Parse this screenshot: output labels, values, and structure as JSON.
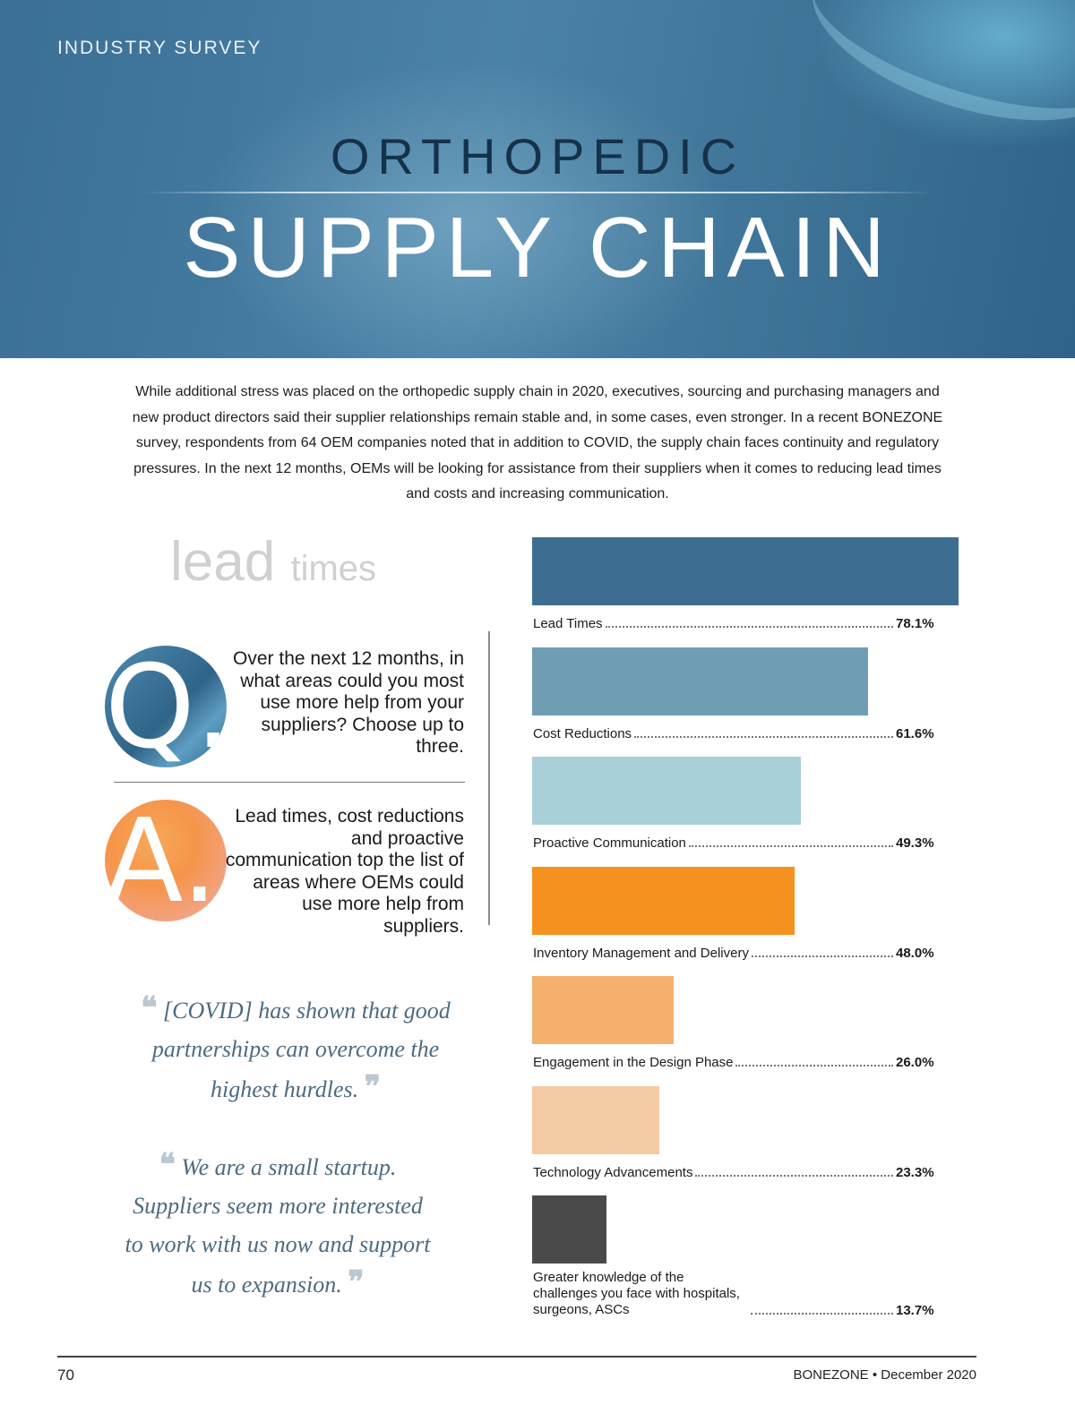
{
  "header": {
    "kicker": "INDUSTRY SURVEY",
    "title_top": "ORTHOPEDIC",
    "title_main": "SUPPLY CHAIN"
  },
  "intro": "While additional stress was placed on the orthopedic supply chain in 2020, executives, sourcing and purchasing managers and new product directors said their supplier relationships remain stable and, in some cases, even stronger. In a recent BONEZONE survey, respondents from 64 OEM companies noted that in addition to COVID, the supply chain faces continuity and regulatory pressures. In the next 12 months, OEMs will be looking for assistance from their suppliers when it comes to reducing lead times and costs and increasing communication.",
  "section": {
    "title_big": "lead",
    "title_small": "times"
  },
  "qa": {
    "q_letter": "Q.",
    "question": "Over the next 12 months, in what areas could you most use more help from your suppliers? Choose up to three.",
    "a_letter": "A.",
    "answer": "Lead times, cost reductions and proactive communication top the list of areas where OEMs could use more help from suppliers."
  },
  "quotes": [
    {
      "open": "❝",
      "text": "[COVID] has shown that good partnerships can overcome the highest hurdles.",
      "close": "❞"
    },
    {
      "open": "❝",
      "text": "We are a small startup. Suppliers seem more interested to work with us now and support us to expansion.",
      "close": "❞"
    }
  ],
  "chart_data": {
    "type": "bar",
    "orientation": "horizontal",
    "categories": [
      "Lead Times",
      "Cost Reductions",
      "Proactive Communication",
      "Inventory Management and Delivery",
      "Engagement in the Design Phase",
      "Technology Advancements",
      "Greater knowledge of the challenges you face with hospitals, surgeons, ASCs"
    ],
    "values": [
      78.1,
      61.6,
      49.3,
      48.0,
      26.0,
      23.3,
      13.7
    ],
    "value_labels": [
      "78.1%",
      "61.6%",
      "49.3%",
      "48.0%",
      "26.0%",
      "23.3%",
      "13.7%"
    ],
    "colors": [
      "#3d6e92",
      "#6f9db4",
      "#a9cfd8",
      "#f5911e",
      "#f5b06e",
      "#f4caa4",
      "#4a4a4a"
    ],
    "xlim": [
      0,
      78.1
    ]
  },
  "footer": {
    "page_number": "70",
    "publication": "BONEZONE • December 2020"
  }
}
